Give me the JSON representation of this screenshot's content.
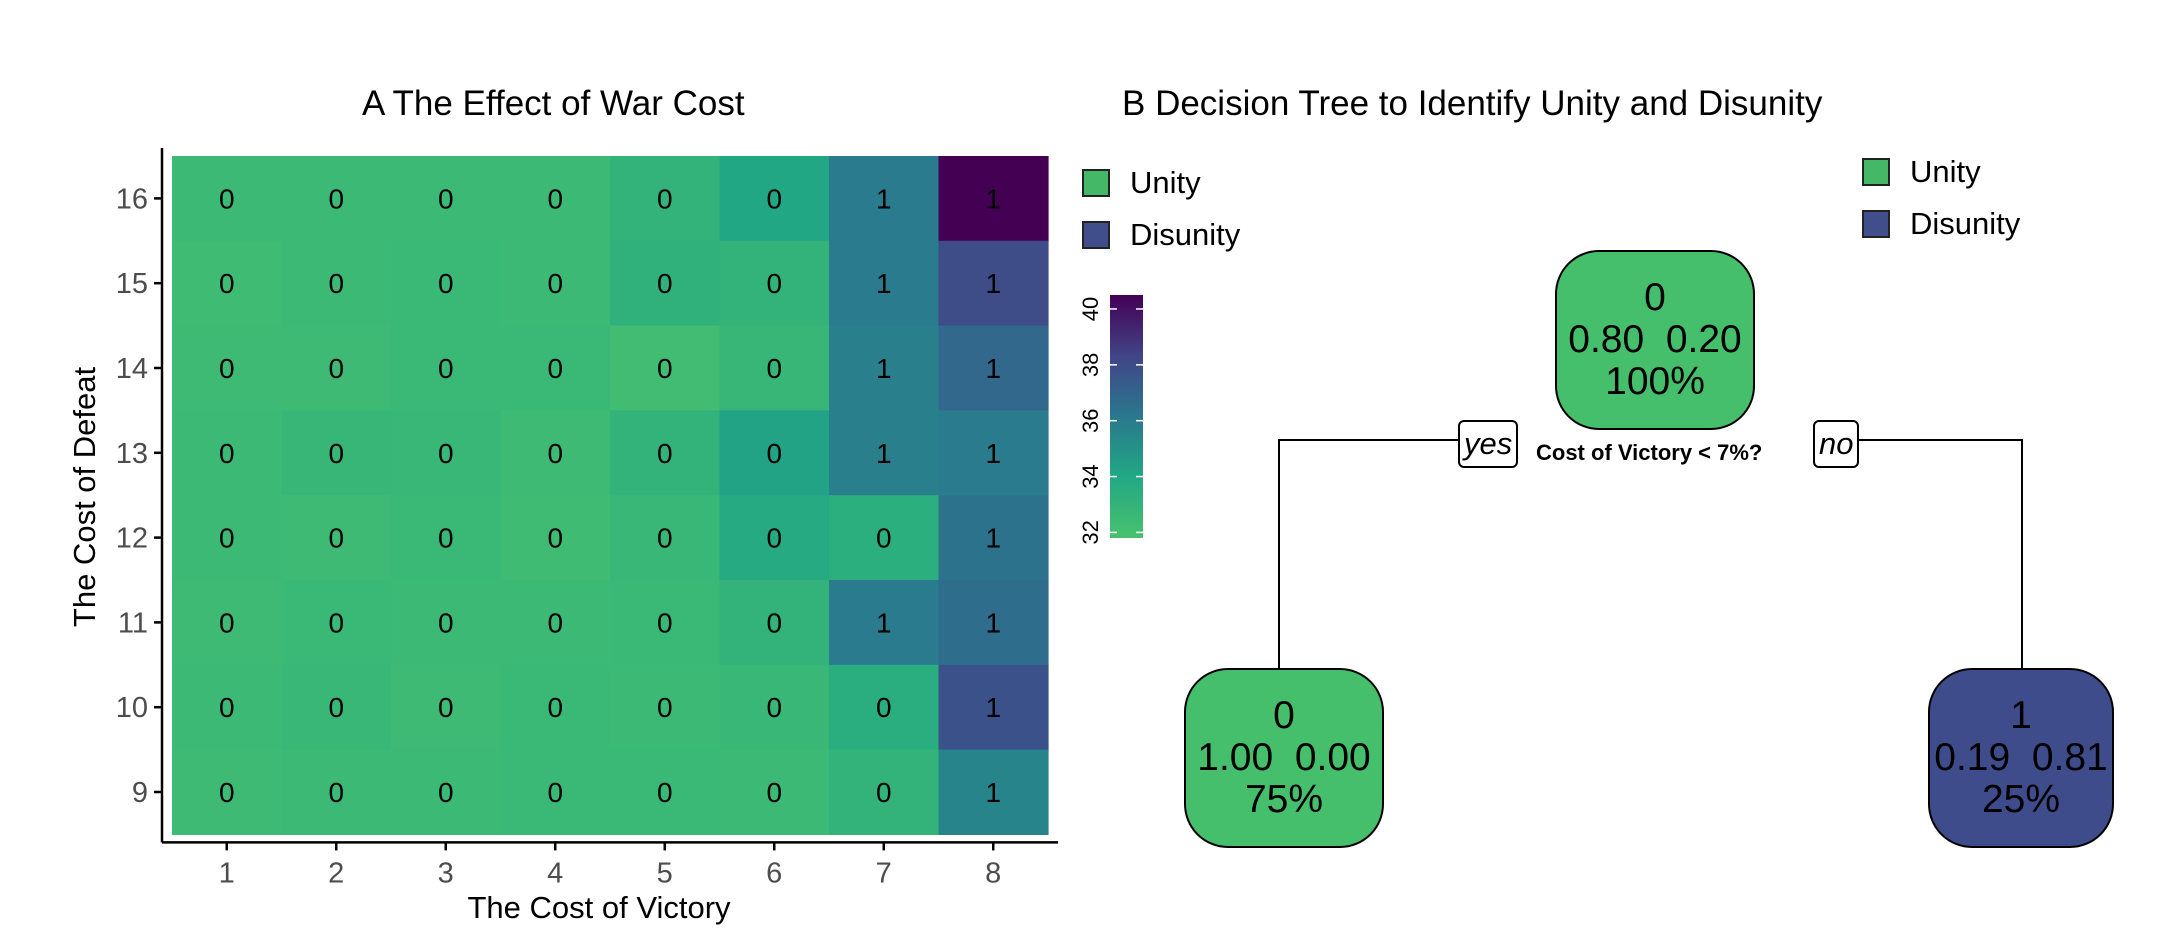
{
  "panel_a_title": "A  The Effect of War Cost",
  "panel_b_title": "B  Decision Tree to Identify Unity and Disunity",
  "legend": {
    "items": [
      {
        "label": "Unity",
        "color": "#45b868"
      },
      {
        "label": "Disunity",
        "color": "#404e8c"
      }
    ]
  },
  "colorbar": {
    "ticks": [
      "32",
      "34",
      "36",
      "38",
      "40"
    ],
    "min": 31.8,
    "max": 40.5
  },
  "tree": {
    "root": {
      "class": "0",
      "probs": "0.80  0.20",
      "pct": "100%"
    },
    "left": {
      "class": "0",
      "probs": "1.00  0.00",
      "pct": "75%"
    },
    "right": {
      "class": "1",
      "probs": "0.19  0.81",
      "pct": "25%"
    },
    "split": "Cost of Victory < 7%?",
    "yes": "yes",
    "no": "no",
    "unity_color": "#45bf6c",
    "disunity_color": "#3f4c8c"
  },
  "chart_data": [
    {
      "type": "heatmap",
      "title": "A  The Effect of War Cost",
      "xlabel": "The Cost of Victory",
      "ylabel": "The Cost of Defeat",
      "x": [
        1,
        2,
        3,
        4,
        5,
        6,
        7,
        8
      ],
      "y": [
        9,
        10,
        11,
        12,
        13,
        14,
        15,
        16
      ],
      "rows": [
        {
          "y": 16,
          "labels": [
            0,
            0,
            0,
            0,
            0,
            0,
            1,
            1
          ],
          "values": [
            32.5,
            32.5,
            32.5,
            32.5,
            33.0,
            34.0,
            36.0,
            40.5
          ]
        },
        {
          "y": 15,
          "labels": [
            0,
            0,
            0,
            0,
            0,
            0,
            1,
            1
          ],
          "values": [
            32.3,
            32.5,
            32.6,
            32.5,
            33.2,
            33.0,
            36.0,
            38.0
          ]
        },
        {
          "y": 14,
          "labels": [
            0,
            0,
            0,
            0,
            0,
            0,
            1,
            1
          ],
          "values": [
            32.4,
            32.4,
            32.6,
            32.6,
            32.2,
            32.8,
            35.8,
            36.8
          ]
        },
        {
          "y": 13,
          "labels": [
            0,
            0,
            0,
            0,
            0,
            0,
            1,
            1
          ],
          "values": [
            32.5,
            32.8,
            32.7,
            32.4,
            33.0,
            34.2,
            35.8,
            36.0
          ]
        },
        {
          "y": 12,
          "labels": [
            0,
            0,
            0,
            0,
            0,
            0,
            0,
            1
          ],
          "values": [
            32.5,
            32.4,
            32.6,
            32.3,
            32.7,
            33.8,
            33.4,
            36.4
          ]
        },
        {
          "y": 11,
          "labels": [
            0,
            0,
            0,
            0,
            0,
            0,
            1,
            1
          ],
          "values": [
            32.4,
            32.6,
            32.5,
            32.5,
            32.6,
            33.0,
            36.0,
            36.6
          ]
        },
        {
          "y": 10,
          "labels": [
            0,
            0,
            0,
            0,
            0,
            0,
            0,
            1
          ],
          "values": [
            32.5,
            32.7,
            32.4,
            32.6,
            32.5,
            32.7,
            33.5,
            37.8
          ]
        },
        {
          "y": 9,
          "labels": [
            0,
            0,
            0,
            0,
            0,
            0,
            0,
            1
          ],
          "values": [
            32.4,
            32.5,
            32.5,
            32.6,
            32.6,
            32.5,
            33.0,
            35.6
          ]
        }
      ],
      "colorbar_range": [
        32,
        40
      ]
    },
    {
      "type": "tree",
      "title": "B  Decision Tree to Identify Unity and Disunity",
      "split": "Cost of Victory < 7%?",
      "nodes": [
        {
          "id": "root",
          "class": 0,
          "probs": [
            0.8,
            0.2
          ],
          "pct": "100%"
        },
        {
          "id": "left",
          "class": 0,
          "probs": [
            1.0,
            0.0
          ],
          "pct": "75%",
          "branch": "yes"
        },
        {
          "id": "right",
          "class": 1,
          "probs": [
            0.19,
            0.81
          ],
          "pct": "25%",
          "branch": "no"
        }
      ]
    }
  ]
}
